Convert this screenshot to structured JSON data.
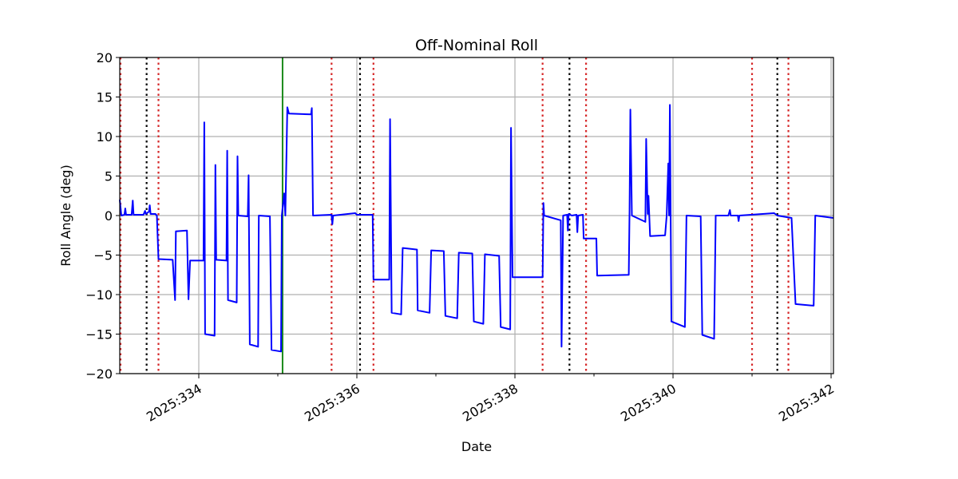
{
  "chart_data": {
    "type": "line",
    "title": "Off-Nominal Roll",
    "xlabel": "Date",
    "ylabel": "Roll Angle (deg)",
    "xlim": [
      333.0,
      342.03
    ],
    "ylim": [
      -20,
      20
    ],
    "grid": true,
    "x_ticks": [
      {
        "value": 334,
        "label": "2025:334"
      },
      {
        "value": 336,
        "label": "2025:336"
      },
      {
        "value": 338,
        "label": "2025:338"
      },
      {
        "value": 340,
        "label": "2025:340"
      },
      {
        "value": 342,
        "label": "2025:342"
      }
    ],
    "x_minor_ticks": [
      335,
      337,
      339,
      341
    ],
    "y_ticks": [
      {
        "value": 20,
        "label": "20"
      },
      {
        "value": 15,
        "label": "15"
      },
      {
        "value": 10,
        "label": "10"
      },
      {
        "value": 5,
        "label": "5"
      },
      {
        "value": 0,
        "label": "0"
      },
      {
        "value": -5,
        "label": "−5"
      },
      {
        "value": -10,
        "label": "−10"
      },
      {
        "value": -15,
        "label": "−15"
      },
      {
        "value": -20,
        "label": "−20"
      }
    ],
    "vlines": [
      {
        "x": 333.01,
        "color": "#d62728",
        "style": "dotted"
      },
      {
        "x": 333.34,
        "color": "#000000",
        "style": "dotted"
      },
      {
        "x": 333.49,
        "color": "#d62728",
        "style": "dotted"
      },
      {
        "x": 335.06,
        "color": "#1a8a1a",
        "style": "solid"
      },
      {
        "x": 335.68,
        "color": "#d62728",
        "style": "dotted"
      },
      {
        "x": 336.04,
        "color": "#000000",
        "style": "dotted"
      },
      {
        "x": 336.21,
        "color": "#d62728",
        "style": "dotted"
      },
      {
        "x": 338.35,
        "color": "#d62728",
        "style": "dotted"
      },
      {
        "x": 338.69,
        "color": "#000000",
        "style": "dotted"
      },
      {
        "x": 338.9,
        "color": "#d62728",
        "style": "dotted"
      },
      {
        "x": 341.0,
        "color": "#d62728",
        "style": "dotted"
      },
      {
        "x": 341.32,
        "color": "#000000",
        "style": "dotted"
      },
      {
        "x": 341.46,
        "color": "#d62728",
        "style": "dotted"
      }
    ],
    "series": [
      {
        "name": "Roll Angle",
        "color": "#0000ff",
        "points": [
          [
            333.0,
            2.0
          ],
          [
            333.02,
            0.0
          ],
          [
            333.06,
            0.1
          ],
          [
            333.07,
            0.9
          ],
          [
            333.08,
            0.1
          ],
          [
            333.15,
            0.1
          ],
          [
            333.165,
            1.9
          ],
          [
            333.175,
            0.1
          ],
          [
            333.3,
            0.1
          ],
          [
            333.32,
            0.6
          ],
          [
            333.33,
            0.2
          ],
          [
            333.37,
            0.5
          ],
          [
            333.38,
            1.3
          ],
          [
            333.39,
            0.2
          ],
          [
            333.45,
            0.2
          ],
          [
            333.47,
            0.0
          ],
          [
            333.49,
            -5.5
          ],
          [
            333.67,
            -5.6
          ],
          [
            333.7,
            -10.7
          ],
          [
            333.71,
            -2.0
          ],
          [
            333.85,
            -1.9
          ],
          [
            333.87,
            -10.6
          ],
          [
            333.89,
            -5.7
          ],
          [
            334.06,
            -5.7
          ],
          [
            334.07,
            11.8
          ],
          [
            334.08,
            -15.0
          ],
          [
            334.2,
            -15.2
          ],
          [
            334.21,
            6.4
          ],
          [
            334.22,
            -5.6
          ],
          [
            334.35,
            -5.7
          ],
          [
            334.36,
            8.2
          ],
          [
            334.37,
            -10.7
          ],
          [
            334.48,
            -11.0
          ],
          [
            334.49,
            7.5
          ],
          [
            334.5,
            0.0
          ],
          [
            334.62,
            -0.1
          ],
          [
            334.63,
            5.1
          ],
          [
            334.645,
            -16.3
          ],
          [
            334.75,
            -16.6
          ],
          [
            334.76,
            0.0
          ],
          [
            334.9,
            -0.1
          ],
          [
            334.92,
            -17.0
          ],
          [
            335.04,
            -17.2
          ],
          [
            335.05,
            0.0
          ],
          [
            335.08,
            2.8
          ],
          [
            335.095,
            0.0
          ],
          [
            335.11,
            8.0
          ],
          [
            335.12,
            13.7
          ],
          [
            335.14,
            12.9
          ],
          [
            335.42,
            12.8
          ],
          [
            335.43,
            13.6
          ],
          [
            335.445,
            0.0
          ],
          [
            335.68,
            0.1
          ],
          [
            335.69,
            -1.1
          ],
          [
            335.7,
            0.0
          ],
          [
            335.98,
            0.3
          ],
          [
            336.0,
            0.1
          ],
          [
            336.2,
            0.1
          ],
          [
            336.21,
            -8.1
          ],
          [
            336.41,
            -8.1
          ],
          [
            336.42,
            12.2
          ],
          [
            336.44,
            -12.3
          ],
          [
            336.56,
            -12.5
          ],
          [
            336.58,
            -4.1
          ],
          [
            336.76,
            -4.3
          ],
          [
            336.77,
            -12.0
          ],
          [
            336.92,
            -12.3
          ],
          [
            336.94,
            -4.4
          ],
          [
            337.1,
            -4.5
          ],
          [
            337.12,
            -12.7
          ],
          [
            337.27,
            -13.0
          ],
          [
            337.29,
            -4.7
          ],
          [
            337.46,
            -4.8
          ],
          [
            337.48,
            -13.4
          ],
          [
            337.6,
            -13.7
          ],
          [
            337.62,
            -4.9
          ],
          [
            337.8,
            -5.1
          ],
          [
            337.82,
            -14.1
          ],
          [
            337.94,
            -14.4
          ],
          [
            337.95,
            11.1
          ],
          [
            337.97,
            -7.8
          ],
          [
            338.35,
            -7.8
          ],
          [
            338.36,
            1.6
          ],
          [
            338.37,
            0.0
          ],
          [
            338.58,
            -0.6
          ],
          [
            338.59,
            -16.6
          ],
          [
            338.61,
            0.0
          ],
          [
            338.66,
            0.1
          ],
          [
            338.67,
            -1.9
          ],
          [
            338.68,
            0.2
          ],
          [
            338.72,
            0.0
          ],
          [
            338.78,
            0.1
          ],
          [
            338.79,
            -2.1
          ],
          [
            338.8,
            0.0
          ],
          [
            338.86,
            0.1
          ],
          [
            338.87,
            -2.9
          ],
          [
            339.03,
            -2.9
          ],
          [
            339.04,
            -7.6
          ],
          [
            339.44,
            -7.5
          ],
          [
            339.45,
            0.8
          ],
          [
            339.46,
            13.4
          ],
          [
            339.48,
            0.0
          ],
          [
            339.65,
            -0.8
          ],
          [
            339.66,
            9.7
          ],
          [
            339.68,
            0.2
          ],
          [
            339.69,
            2.5
          ],
          [
            339.71,
            -2.6
          ],
          [
            339.9,
            -2.5
          ],
          [
            339.92,
            0.0
          ],
          [
            339.94,
            6.6
          ],
          [
            339.95,
            0.0
          ],
          [
            339.96,
            14.0
          ],
          [
            339.98,
            -13.4
          ],
          [
            340.15,
            -14.1
          ],
          [
            340.17,
            0.0
          ],
          [
            340.35,
            -0.1
          ],
          [
            340.37,
            -15.1
          ],
          [
            340.52,
            -15.6
          ],
          [
            340.54,
            0.0
          ],
          [
            340.7,
            0.0
          ],
          [
            340.72,
            0.7
          ],
          [
            340.73,
            0.0
          ],
          [
            340.82,
            0.0
          ],
          [
            340.83,
            -0.7
          ],
          [
            340.84,
            0.0
          ],
          [
            341.28,
            0.3
          ],
          [
            341.32,
            0.0
          ],
          [
            341.5,
            -0.3
          ],
          [
            341.55,
            -11.2
          ],
          [
            341.78,
            -11.4
          ],
          [
            341.8,
            0.0
          ],
          [
            342.03,
            -0.3
          ]
        ]
      }
    ]
  }
}
